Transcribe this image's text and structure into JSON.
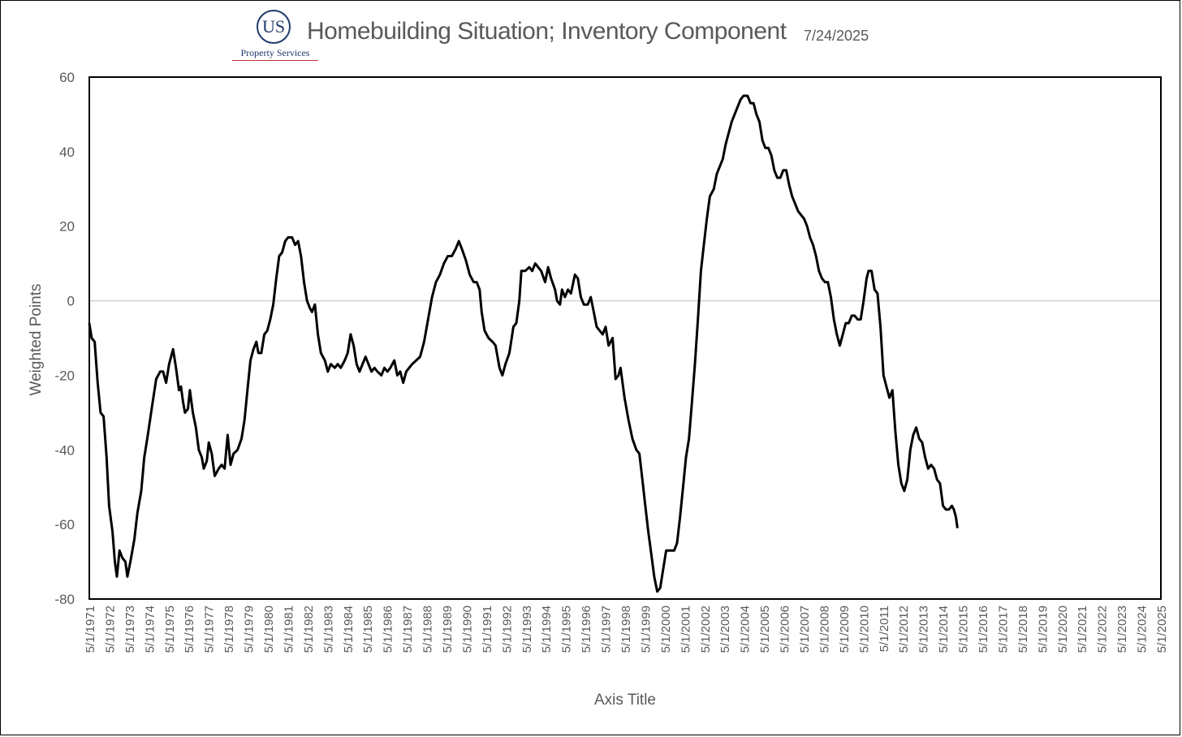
{
  "logo": {
    "initials": "US",
    "name": "Property Services"
  },
  "header": {
    "title": "Homebuilding Situation; Inventory Component",
    "date": "7/24/2025"
  },
  "chart_data": {
    "type": "line",
    "title": "Homebuilding Situation; Inventory Component",
    "xlabel": "Axis Title",
    "ylabel": "Weighted Points",
    "ylim": [
      -80,
      60
    ],
    "yticks": [
      60,
      40,
      20,
      0,
      -20,
      -40,
      -60,
      -80
    ],
    "xlim": [
      1971.33,
      2025.33
    ],
    "xticks": [
      "5/1/1971",
      "5/1/1972",
      "5/1/1973",
      "5/1/1974",
      "5/1/1975",
      "5/1/1976",
      "5/1/1977",
      "5/1/1978",
      "5/1/1979",
      "5/1/1980",
      "5/1/1981",
      "5/1/1982",
      "5/1/1983",
      "5/1/1984",
      "5/1/1985",
      "5/1/1986",
      "5/1/1987",
      "5/1/1988",
      "5/1/1989",
      "5/1/1990",
      "5/1/1991",
      "5/1/1992",
      "5/1/1993",
      "5/1/1994",
      "5/1/1995",
      "5/1/1996",
      "5/1/1997",
      "5/1/1998",
      "5/1/1999",
      "5/1/2000",
      "5/1/2001",
      "5/1/2002",
      "5/1/2003",
      "5/1/2004",
      "5/1/2005",
      "5/1/2006",
      "5/1/2007",
      "5/1/2008",
      "5/1/2009",
      "5/1/2010",
      "5/1/2011",
      "5/1/2012",
      "5/1/2013",
      "5/1/2014",
      "5/1/2015",
      "5/1/2016",
      "5/1/2017",
      "5/1/2018",
      "5/1/2019",
      "5/1/2020",
      "5/1/2021",
      "5/1/2022",
      "5/1/2023",
      "5/1/2024",
      "5/1/2025"
    ],
    "grid": false,
    "zero_line": true,
    "series": [
      {
        "color": "#000000",
        "points": [
          [
            1971.33,
            -6
          ],
          [
            1971.45,
            -10
          ],
          [
            1971.6,
            -11
          ],
          [
            1971.75,
            -22
          ],
          [
            1971.9,
            -30
          ],
          [
            1972.05,
            -31
          ],
          [
            1972.2,
            -42
          ],
          [
            1972.33,
            -55
          ],
          [
            1972.5,
            -62
          ],
          [
            1972.62,
            -70
          ],
          [
            1972.72,
            -74
          ],
          [
            1972.85,
            -67
          ],
          [
            1973.0,
            -69
          ],
          [
            1973.15,
            -70
          ],
          [
            1973.25,
            -74
          ],
          [
            1973.4,
            -70
          ],
          [
            1973.6,
            -64
          ],
          [
            1973.75,
            -57
          ],
          [
            1973.95,
            -51
          ],
          [
            1974.1,
            -42
          ],
          [
            1974.25,
            -37
          ],
          [
            1974.5,
            -28
          ],
          [
            1974.7,
            -21
          ],
          [
            1974.9,
            -19
          ],
          [
            1975.05,
            -19
          ],
          [
            1975.2,
            -22
          ],
          [
            1975.35,
            -17
          ],
          [
            1975.55,
            -13
          ],
          [
            1975.7,
            -18
          ],
          [
            1975.85,
            -24
          ],
          [
            1975.95,
            -23
          ],
          [
            1976.05,
            -27
          ],
          [
            1976.15,
            -30
          ],
          [
            1976.3,
            -29
          ],
          [
            1976.4,
            -24
          ],
          [
            1976.55,
            -30
          ],
          [
            1976.7,
            -34
          ],
          [
            1976.85,
            -40
          ],
          [
            1977.0,
            -42
          ],
          [
            1977.1,
            -45
          ],
          [
            1977.25,
            -43
          ],
          [
            1977.35,
            -38
          ],
          [
            1977.5,
            -41
          ],
          [
            1977.65,
            -47
          ],
          [
            1977.85,
            -45
          ],
          [
            1978.0,
            -44
          ],
          [
            1978.15,
            -45
          ],
          [
            1978.3,
            -36
          ],
          [
            1978.45,
            -44
          ],
          [
            1978.6,
            -41
          ],
          [
            1978.8,
            -40
          ],
          [
            1979.0,
            -37
          ],
          [
            1979.15,
            -32
          ],
          [
            1979.3,
            -24
          ],
          [
            1979.45,
            -16
          ],
          [
            1979.6,
            -13
          ],
          [
            1979.75,
            -11
          ],
          [
            1979.85,
            -14
          ],
          [
            1980.0,
            -14
          ],
          [
            1980.15,
            -9
          ],
          [
            1980.3,
            -8
          ],
          [
            1980.45,
            -5
          ],
          [
            1980.6,
            -1
          ],
          [
            1980.75,
            6
          ],
          [
            1980.9,
            12
          ],
          [
            1981.05,
            13
          ],
          [
            1981.2,
            16
          ],
          [
            1981.35,
            17
          ],
          [
            1981.55,
            17
          ],
          [
            1981.7,
            15
          ],
          [
            1981.85,
            16
          ],
          [
            1982.0,
            12
          ],
          [
            1982.15,
            5
          ],
          [
            1982.3,
            0
          ],
          [
            1982.45,
            -2
          ],
          [
            1982.55,
            -3
          ],
          [
            1982.7,
            -1
          ],
          [
            1982.85,
            -9
          ],
          [
            1983.0,
            -14
          ],
          [
            1983.2,
            -16
          ],
          [
            1983.35,
            -19
          ],
          [
            1983.5,
            -17
          ],
          [
            1983.7,
            -18
          ],
          [
            1983.85,
            -17
          ],
          [
            1984.0,
            -18
          ],
          [
            1984.2,
            -16
          ],
          [
            1984.35,
            -14
          ],
          [
            1984.5,
            -9
          ],
          [
            1984.65,
            -12
          ],
          [
            1984.8,
            -17
          ],
          [
            1984.95,
            -19
          ],
          [
            1985.1,
            -17
          ],
          [
            1985.25,
            -15
          ],
          [
            1985.4,
            -17
          ],
          [
            1985.55,
            -19
          ],
          [
            1985.7,
            -18
          ],
          [
            1985.85,
            -19
          ],
          [
            1986.05,
            -20
          ],
          [
            1986.2,
            -18
          ],
          [
            1986.35,
            -19
          ],
          [
            1986.5,
            -18
          ],
          [
            1986.7,
            -16
          ],
          [
            1986.85,
            -20
          ],
          [
            1987.0,
            -19
          ],
          [
            1987.15,
            -22
          ],
          [
            1987.3,
            -19
          ],
          [
            1987.45,
            -18
          ],
          [
            1987.6,
            -17
          ],
          [
            1987.8,
            -16
          ],
          [
            1988.0,
            -15
          ],
          [
            1988.2,
            -11
          ],
          [
            1988.4,
            -5
          ],
          [
            1988.6,
            1
          ],
          [
            1988.8,
            5
          ],
          [
            1989.0,
            7
          ],
          [
            1989.2,
            10
          ],
          [
            1989.4,
            12
          ],
          [
            1989.6,
            12
          ],
          [
            1989.8,
            14
          ],
          [
            1989.95,
            16
          ],
          [
            1990.1,
            14
          ],
          [
            1990.3,
            11
          ],
          [
            1990.5,
            7
          ],
          [
            1990.7,
            5
          ],
          [
            1990.85,
            5
          ],
          [
            1991.0,
            3
          ],
          [
            1991.1,
            -3
          ],
          [
            1991.25,
            -8
          ],
          [
            1991.45,
            -10
          ],
          [
            1991.65,
            -11
          ],
          [
            1991.8,
            -12
          ],
          [
            1992.0,
            -18
          ],
          [
            1992.15,
            -20
          ],
          [
            1992.3,
            -17
          ],
          [
            1992.5,
            -14
          ],
          [
            1992.7,
            -7
          ],
          [
            1992.85,
            -6
          ],
          [
            1993.0,
            0
          ],
          [
            1993.1,
            8
          ],
          [
            1993.3,
            8
          ],
          [
            1993.5,
            9
          ],
          [
            1993.65,
            8
          ],
          [
            1993.8,
            10
          ],
          [
            1993.95,
            9
          ],
          [
            1994.1,
            8
          ],
          [
            1994.3,
            5
          ],
          [
            1994.45,
            9
          ],
          [
            1994.6,
            6
          ],
          [
            1994.8,
            3
          ],
          [
            1994.9,
            0
          ],
          [
            1995.05,
            -1
          ],
          [
            1995.15,
            3
          ],
          [
            1995.3,
            1
          ],
          [
            1995.45,
            3
          ],
          [
            1995.6,
            2
          ],
          [
            1995.8,
            7
          ],
          [
            1995.95,
            6
          ],
          [
            1996.1,
            1
          ],
          [
            1996.25,
            -1
          ],
          [
            1996.45,
            -1
          ],
          [
            1996.6,
            1
          ],
          [
            1996.75,
            -3
          ],
          [
            1996.9,
            -7
          ],
          [
            1997.05,
            -8
          ],
          [
            1997.2,
            -9
          ],
          [
            1997.35,
            -7
          ],
          [
            1997.5,
            -12
          ],
          [
            1997.7,
            -10
          ],
          [
            1997.85,
            -21
          ],
          [
            1998.0,
            -20
          ],
          [
            1998.1,
            -18
          ],
          [
            1998.3,
            -26
          ],
          [
            1998.5,
            -32
          ],
          [
            1998.7,
            -37
          ],
          [
            1998.9,
            -40
          ],
          [
            1999.05,
            -41
          ],
          [
            1999.2,
            -48
          ],
          [
            1999.35,
            -55
          ],
          [
            1999.5,
            -62
          ],
          [
            1999.65,
            -68
          ],
          [
            1999.8,
            -74
          ],
          [
            1999.95,
            -78
          ],
          [
            2000.1,
            -77
          ],
          [
            2000.25,
            -72
          ],
          [
            2000.4,
            -67
          ],
          [
            2000.6,
            -67
          ],
          [
            2000.8,
            -67
          ],
          [
            2000.95,
            -65
          ],
          [
            2001.1,
            -58
          ],
          [
            2001.25,
            -50
          ],
          [
            2001.4,
            -42
          ],
          [
            2001.55,
            -37
          ],
          [
            2001.7,
            -27
          ],
          [
            2001.85,
            -17
          ],
          [
            2002.0,
            -5
          ],
          [
            2002.15,
            8
          ],
          [
            2002.3,
            15
          ],
          [
            2002.45,
            22
          ],
          [
            2002.6,
            28
          ],
          [
            2002.8,
            30
          ],
          [
            2002.95,
            34
          ],
          [
            2003.1,
            36
          ],
          [
            2003.25,
            38
          ],
          [
            2003.4,
            42
          ],
          [
            2003.55,
            45
          ],
          [
            2003.7,
            48
          ],
          [
            2003.85,
            50
          ],
          [
            2004.0,
            52
          ],
          [
            2004.15,
            54
          ],
          [
            2004.3,
            55
          ],
          [
            2004.5,
            55
          ],
          [
            2004.65,
            53
          ],
          [
            2004.8,
            53
          ],
          [
            2004.95,
            50
          ],
          [
            2005.1,
            48
          ],
          [
            2005.25,
            43
          ],
          [
            2005.4,
            41
          ],
          [
            2005.55,
            41
          ],
          [
            2005.7,
            39
          ],
          [
            2005.85,
            35
          ],
          [
            2006.0,
            33
          ],
          [
            2006.15,
            33
          ],
          [
            2006.3,
            35
          ],
          [
            2006.45,
            35
          ],
          [
            2006.6,
            31
          ],
          [
            2006.75,
            28
          ],
          [
            2006.9,
            26
          ],
          [
            2007.05,
            24
          ],
          [
            2007.2,
            23
          ],
          [
            2007.35,
            22
          ],
          [
            2007.5,
            20
          ],
          [
            2007.65,
            17
          ],
          [
            2007.8,
            15
          ],
          [
            2007.95,
            12
          ],
          [
            2008.1,
            8
          ],
          [
            2008.25,
            6
          ],
          [
            2008.4,
            5
          ],
          [
            2008.55,
            5
          ],
          [
            2008.7,
            1
          ],
          [
            2008.85,
            -5
          ],
          [
            2009.0,
            -9
          ],
          [
            2009.15,
            -12
          ],
          [
            2009.3,
            -9
          ],
          [
            2009.45,
            -6
          ],
          [
            2009.6,
            -6
          ],
          [
            2009.75,
            -4
          ],
          [
            2009.9,
            -4
          ],
          [
            2010.05,
            -5
          ],
          [
            2010.2,
            -5
          ],
          [
            2010.35,
            0
          ],
          [
            2010.5,
            6
          ],
          [
            2010.6,
            8
          ],
          [
            2010.75,
            8
          ],
          [
            2010.9,
            3
          ],
          [
            2011.05,
            2
          ],
          [
            2011.2,
            -7
          ],
          [
            2011.35,
            -20
          ],
          [
            2011.5,
            -23
          ],
          [
            2011.65,
            -26
          ],
          [
            2011.8,
            -24
          ],
          [
            2011.95,
            -35
          ],
          [
            2012.1,
            -44
          ],
          [
            2012.25,
            -49
          ],
          [
            2012.4,
            -51
          ],
          [
            2012.55,
            -48
          ],
          [
            2012.7,
            -40
          ],
          [
            2012.85,
            -36
          ],
          [
            2013.0,
            -34
          ],
          [
            2013.15,
            -37
          ],
          [
            2013.3,
            -38
          ],
          [
            2013.45,
            -42
          ],
          [
            2013.6,
            -45
          ],
          [
            2013.75,
            -44
          ],
          [
            2013.9,
            -45
          ],
          [
            2014.05,
            -48
          ],
          [
            2014.2,
            -49
          ],
          [
            2014.35,
            -55
          ],
          [
            2014.5,
            -56
          ],
          [
            2014.65,
            -56
          ],
          [
            2014.8,
            -55
          ],
          [
            2014.9,
            -56
          ],
          [
            2015.0,
            -58
          ],
          [
            2015.08,
            -61
          ]
        ]
      }
    ]
  }
}
